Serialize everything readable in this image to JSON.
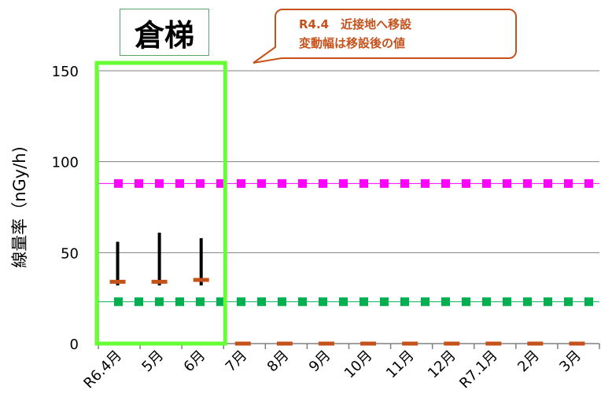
{
  "chart_data": {
    "type": "scatter",
    "title": "倉梯",
    "ylabel": "線量率（nGy/h)",
    "ylim": [
      0,
      150
    ],
    "yticks": [
      0,
      50,
      100,
      150
    ],
    "categories": [
      "R6.4月",
      "5月",
      "6月",
      "7月",
      "8月",
      "9月",
      "10月",
      "11月",
      "12月",
      "R7.1月",
      "2月",
      "3月"
    ],
    "series": [
      {
        "values": [
          34,
          34,
          35,
          0,
          0,
          0,
          0,
          0,
          0,
          0,
          0,
          0
        ]
      }
    ],
    "ranges": [
      {
        "category": "R6.4月",
        "low": 32,
        "high": 56
      },
      {
        "category": "5月",
        "low": 32,
        "high": 61
      },
      {
        "category": "6月",
        "low": 32,
        "high": 58
      }
    ],
    "reference_lines": [
      {
        "value": 88,
        "color": "#ff00ff",
        "style": "dotted"
      },
      {
        "value": 23,
        "color": "#00b050",
        "style": "dotted"
      }
    ],
    "annotation": {
      "lines": [
        "R4.4　近接地へ移設",
        "変動幅は移設後の値"
      ]
    },
    "highlight": {
      "from": "R6.4月",
      "to": "6月",
      "color": "#66ff33"
    },
    "grid": true,
    "colors": {
      "marker": "#c5511b",
      "range": "#000000",
      "grid": "#808080"
    }
  }
}
